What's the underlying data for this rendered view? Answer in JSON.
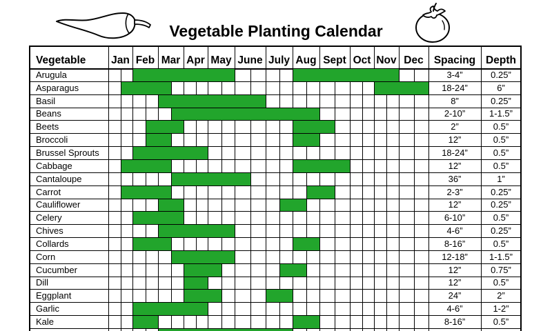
{
  "icons": {
    "left": "chili-pepper-icon",
    "right": "tomato-icon"
  },
  "chart_data": {
    "type": "table",
    "title": "Vegetable Planting Calendar",
    "grid": true,
    "bar_color": "#22a52c",
    "columns": [
      "Vegetable",
      "Jan",
      "Feb",
      "Mar",
      "Apr",
      "May",
      "June",
      "July",
      "Aug",
      "Sept",
      "Oct",
      "Nov",
      "Dec",
      "Spacing",
      "Depth"
    ],
    "rows": [
      {
        "vegetable": "Arugula",
        "spacing": "3-4”",
        "depth": "0.25”",
        "planting": [
          {
            "start": [
              "Feb",
              1
            ],
            "end": [
              "May",
              2
            ]
          },
          {
            "start": [
              "Aug",
              1
            ],
            "end": [
              "Nov",
              2
            ]
          }
        ]
      },
      {
        "vegetable": "Asparagus",
        "spacing": "18-24”",
        "depth": "6”",
        "planting": [
          {
            "start": [
              "Jan",
              2
            ],
            "end": [
              "Mar",
              1
            ]
          },
          {
            "start": [
              "Nov",
              1
            ],
            "end": [
              "Dec",
              2
            ]
          }
        ]
      },
      {
        "vegetable": "Basil",
        "spacing": "8”",
        "depth": "0.25”",
        "planting": [
          {
            "start": [
              "Mar",
              1
            ],
            "end": [
              "June",
              2
            ]
          }
        ]
      },
      {
        "vegetable": "Beans",
        "spacing": "2-10”",
        "depth": "1-1.5”",
        "planting": [
          {
            "start": [
              "Mar",
              2
            ],
            "end": [
              "Aug",
              2
            ]
          }
        ]
      },
      {
        "vegetable": "Beets",
        "spacing": "2”",
        "depth": "0.5”",
        "planting": [
          {
            "start": [
              "Feb",
              2
            ],
            "end": [
              "Mar",
              2
            ]
          },
          {
            "start": [
              "Aug",
              1
            ],
            "end": [
              "Sept",
              1
            ]
          }
        ]
      },
      {
        "vegetable": "Broccoli",
        "spacing": "12”",
        "depth": "0.5”",
        "planting": [
          {
            "start": [
              "Feb",
              2
            ],
            "end": [
              "Mar",
              1
            ]
          },
          {
            "start": [
              "Aug",
              1
            ],
            "end": [
              "Aug",
              2
            ]
          }
        ]
      },
      {
        "vegetable": "Brussel Sprouts",
        "spacing": "18-24”",
        "depth": "0.5”",
        "planting": [
          {
            "start": [
              "Feb",
              1
            ],
            "end": [
              "Apr",
              2
            ]
          }
        ]
      },
      {
        "vegetable": "Cabbage",
        "spacing": "12”",
        "depth": "0.5”",
        "planting": [
          {
            "start": [
              "Jan",
              2
            ],
            "end": [
              "Mar",
              1
            ]
          },
          {
            "start": [
              "Aug",
              1
            ],
            "end": [
              "Sept",
              2
            ]
          }
        ]
      },
      {
        "vegetable": "Cantaloupe",
        "spacing": "36”",
        "depth": "1”",
        "planting": [
          {
            "start": [
              "Mar",
              2
            ],
            "end": [
              "June",
              1
            ]
          }
        ]
      },
      {
        "vegetable": "Carrot",
        "spacing": "2-3”",
        "depth": "0.25”",
        "planting": [
          {
            "start": [
              "Jan",
              2
            ],
            "end": [
              "Mar",
              1
            ]
          },
          {
            "start": [
              "Aug",
              2
            ],
            "end": [
              "Sept",
              1
            ]
          }
        ]
      },
      {
        "vegetable": "Cauliflower",
        "spacing": "12”",
        "depth": "0.25”",
        "planting": [
          {
            "start": [
              "Mar",
              1
            ],
            "end": [
              "Mar",
              2
            ]
          },
          {
            "start": [
              "July",
              2
            ],
            "end": [
              "Aug",
              1
            ]
          }
        ]
      },
      {
        "vegetable": "Celery",
        "spacing": "6-10”",
        "depth": "0.5”",
        "planting": [
          {
            "start": [
              "Feb",
              1
            ],
            "end": [
              "Mar",
              2
            ]
          }
        ]
      },
      {
        "vegetable": "Chives",
        "spacing": "4-6”",
        "depth": "0.25”",
        "planting": [
          {
            "start": [
              "Mar",
              1
            ],
            "end": [
              "May",
              2
            ]
          }
        ]
      },
      {
        "vegetable": "Collards",
        "spacing": "8-16”",
        "depth": "0.5”",
        "planting": [
          {
            "start": [
              "Feb",
              1
            ],
            "end": [
              "Mar",
              1
            ]
          },
          {
            "start": [
              "Aug",
              1
            ],
            "end": [
              "Aug",
              2
            ]
          }
        ]
      },
      {
        "vegetable": "Corn",
        "spacing": "12-18”",
        "depth": "1-1.5”",
        "planting": [
          {
            "start": [
              "Mar",
              2
            ],
            "end": [
              "May",
              2
            ]
          }
        ]
      },
      {
        "vegetable": "Cucumber",
        "spacing": "12”",
        "depth": "0.75”",
        "planting": [
          {
            "start": [
              "Apr",
              1
            ],
            "end": [
              "May",
              1
            ]
          },
          {
            "start": [
              "July",
              2
            ],
            "end": [
              "Aug",
              1
            ]
          }
        ]
      },
      {
        "vegetable": "Dill",
        "spacing": "12”",
        "depth": "0.5”",
        "planting": [
          {
            "start": [
              "Apr",
              1
            ],
            "end": [
              "Apr",
              2
            ]
          }
        ]
      },
      {
        "vegetable": "Eggplant",
        "spacing": "24”",
        "depth": "2”",
        "planting": [
          {
            "start": [
              "Apr",
              1
            ],
            "end": [
              "May",
              1
            ]
          },
          {
            "start": [
              "July",
              1
            ],
            "end": [
              "July",
              2
            ]
          }
        ]
      },
      {
        "vegetable": "Garlic",
        "spacing": "4-6”",
        "depth": "1-2”",
        "planting": [
          {
            "start": [
              "Feb",
              1
            ],
            "end": [
              "Apr",
              2
            ]
          }
        ]
      },
      {
        "vegetable": "Kale",
        "spacing": "8-16”",
        "depth": "0.5”",
        "planting": [
          {
            "start": [
              "Feb",
              1
            ],
            "end": [
              "Feb",
              2
            ]
          },
          {
            "start": [
              "Aug",
              1
            ],
            "end": [
              "Aug",
              2
            ]
          }
        ]
      },
      {
        "planting": [
          {
            "start": [
              "Mar",
              1
            ],
            "end": [
              "July",
              2
            ]
          }
        ]
      }
    ]
  }
}
